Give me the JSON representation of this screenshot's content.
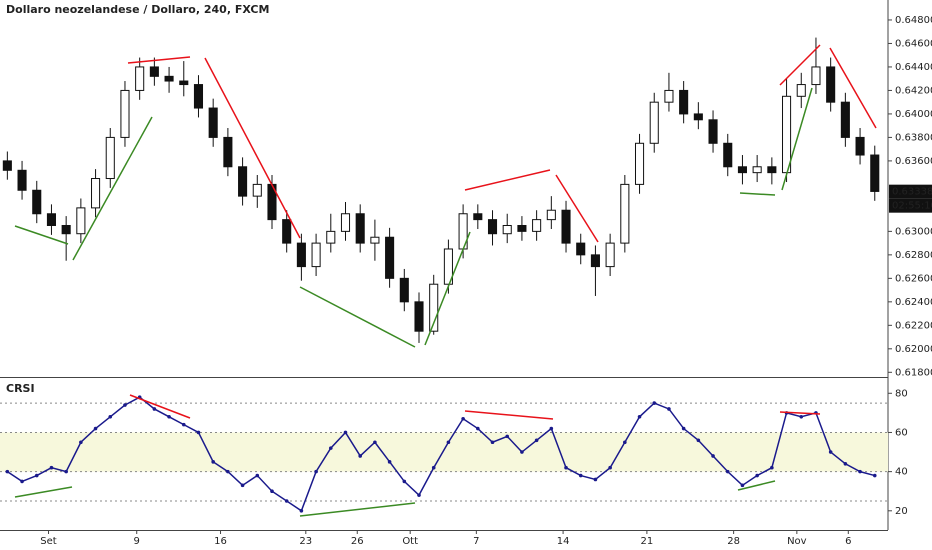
{
  "chart_data": [
    {
      "type": "candlestick",
      "title": "Dollaro neozelandese / Dollaro, 240, FXCM",
      "color": "#111111",
      "open": [
        0.636,
        0.6352,
        0.6335,
        0.6315,
        0.6305,
        0.6298,
        0.632,
        0.6345,
        0.638,
        0.642,
        0.644,
        0.6432,
        0.6428,
        0.6425,
        0.6405,
        0.638,
        0.6355,
        0.633,
        0.634,
        0.631,
        0.629,
        0.627,
        0.629,
        0.63,
        0.6315,
        0.629,
        0.6295,
        0.626,
        0.624,
        0.6215,
        0.6255,
        0.6285,
        0.6315,
        0.631,
        0.6298,
        0.6305,
        0.63,
        0.631,
        0.6318,
        0.629,
        0.628,
        0.627,
        0.629,
        0.634,
        0.6375,
        0.641,
        0.642,
        0.64,
        0.6395,
        0.6375,
        0.6355,
        0.635,
        0.6355,
        0.635,
        0.6415,
        0.6425,
        0.644,
        0.641,
        0.638,
        0.6365
      ],
      "high": [
        0.6368,
        0.636,
        0.6343,
        0.6323,
        0.6313,
        0.6328,
        0.6353,
        0.6388,
        0.6428,
        0.6448,
        0.6448,
        0.644,
        0.6445,
        0.6433,
        0.6413,
        0.6388,
        0.6363,
        0.6348,
        0.6348,
        0.6318,
        0.6298,
        0.6298,
        0.6315,
        0.6325,
        0.6323,
        0.631,
        0.6303,
        0.6268,
        0.6248,
        0.6263,
        0.6293,
        0.6323,
        0.6323,
        0.6318,
        0.6315,
        0.6313,
        0.6318,
        0.633,
        0.6326,
        0.6298,
        0.6288,
        0.6298,
        0.6348,
        0.6383,
        0.6418,
        0.6435,
        0.6428,
        0.641,
        0.6403,
        0.6383,
        0.6365,
        0.6365,
        0.6363,
        0.643,
        0.6435,
        0.6465,
        0.6448,
        0.6418,
        0.6388,
        0.6373
      ],
      "low": [
        0.6344,
        0.6327,
        0.6307,
        0.6297,
        0.6275,
        0.629,
        0.6312,
        0.6337,
        0.6372,
        0.6412,
        0.6424,
        0.6418,
        0.6415,
        0.6397,
        0.6372,
        0.6347,
        0.6322,
        0.632,
        0.6302,
        0.6282,
        0.6258,
        0.6262,
        0.6282,
        0.6292,
        0.6282,
        0.6275,
        0.6252,
        0.6232,
        0.6205,
        0.6212,
        0.6247,
        0.6277,
        0.6302,
        0.6288,
        0.629,
        0.6292,
        0.6292,
        0.6302,
        0.6282,
        0.6272,
        0.6245,
        0.6262,
        0.6282,
        0.6332,
        0.6367,
        0.6402,
        0.6392,
        0.6387,
        0.6367,
        0.6347,
        0.634,
        0.6342,
        0.634,
        0.6342,
        0.6405,
        0.6417,
        0.6402,
        0.6372,
        0.6357,
        0.6326
      ],
      "close": [
        0.6352,
        0.6335,
        0.6315,
        0.6305,
        0.6298,
        0.632,
        0.6345,
        0.638,
        0.642,
        0.644,
        0.6432,
        0.6428,
        0.6425,
        0.6405,
        0.638,
        0.6355,
        0.633,
        0.634,
        0.631,
        0.629,
        0.627,
        0.629,
        0.63,
        0.6315,
        0.629,
        0.6295,
        0.626,
        0.624,
        0.6215,
        0.6255,
        0.6285,
        0.6315,
        0.631,
        0.6298,
        0.6305,
        0.63,
        0.631,
        0.6318,
        0.629,
        0.628,
        0.627,
        0.629,
        0.634,
        0.6375,
        0.641,
        0.642,
        0.64,
        0.6395,
        0.6375,
        0.6355,
        0.635,
        0.6355,
        0.635,
        0.6415,
        0.6425,
        0.644,
        0.641,
        0.638,
        0.6365,
        0.6334
      ],
      "xlim": [
        -0.5,
        59.9
      ],
      "xticks": [
        {
          "value": 2.8,
          "label": "Set"
        },
        {
          "value": 8.8,
          "label": "9"
        },
        {
          "value": 14.5,
          "label": "16"
        },
        {
          "value": 20.3,
          "label": "23"
        },
        {
          "value": 23.8,
          "label": "26"
        },
        {
          "value": 27.4,
          "label": "Ott"
        },
        {
          "value": 31.9,
          "label": "7"
        },
        {
          "value": 37.8,
          "label": "14"
        },
        {
          "value": 43.5,
          "label": "21"
        },
        {
          "value": 49.4,
          "label": "28"
        },
        {
          "value": 53.7,
          "label": "Nov"
        },
        {
          "value": 57.2,
          "label": "6"
        }
      ],
      "ylim": [
        0.6176,
        0.6497
      ],
      "yticks": [
        {
          "value": 0.618,
          "label": "0.61800"
        },
        {
          "value": 0.62,
          "label": "0.62000"
        },
        {
          "value": 0.622,
          "label": "0.62200"
        },
        {
          "value": 0.624,
          "label": "0.62400"
        },
        {
          "value": 0.626,
          "label": "0.62600"
        },
        {
          "value": 0.628,
          "label": "0.62800"
        },
        {
          "value": 0.63,
          "label": "0.63000"
        },
        {
          "value": 0.636,
          "label": "0.63600"
        },
        {
          "value": 0.638,
          "label": "0.63800"
        },
        {
          "value": 0.64,
          "label": "0.64000"
        },
        {
          "value": 0.642,
          "label": "0.64200"
        },
        {
          "value": 0.644,
          "label": "0.64400"
        },
        {
          "value": 0.646,
          "label": "0.64600"
        },
        {
          "value": 0.648,
          "label": "0.64800"
        }
      ],
      "last_price": {
        "value": 0.63338,
        "label": "0.63338"
      },
      "countdown": "02:55:10",
      "grid": false
    },
    {
      "type": "line",
      "title": "CRSI",
      "color": "#1a1a8c",
      "values": [
        40,
        35,
        38,
        42,
        40,
        55,
        62,
        68,
        74,
        78,
        72,
        68,
        64,
        60,
        45,
        40,
        33,
        38,
        30,
        25,
        20,
        40,
        52,
        60,
        48,
        55,
        45,
        35,
        28,
        42,
        55,
        67,
        62,
        55,
        58,
        50,
        56,
        62,
        42,
        38,
        36,
        42,
        55,
        68,
        75,
        72,
        62,
        56,
        48,
        40,
        33,
        38,
        42,
        70,
        68,
        70,
        50,
        44,
        40,
        38
      ],
      "ylim": [
        10.2,
        87.8
      ],
      "yticks": [
        20,
        40,
        60,
        80
      ],
      "band": [
        40,
        60
      ],
      "levels": [
        25,
        40,
        60,
        75
      ],
      "band_color": "#f7f8dc",
      "grid": false
    }
  ]
}
